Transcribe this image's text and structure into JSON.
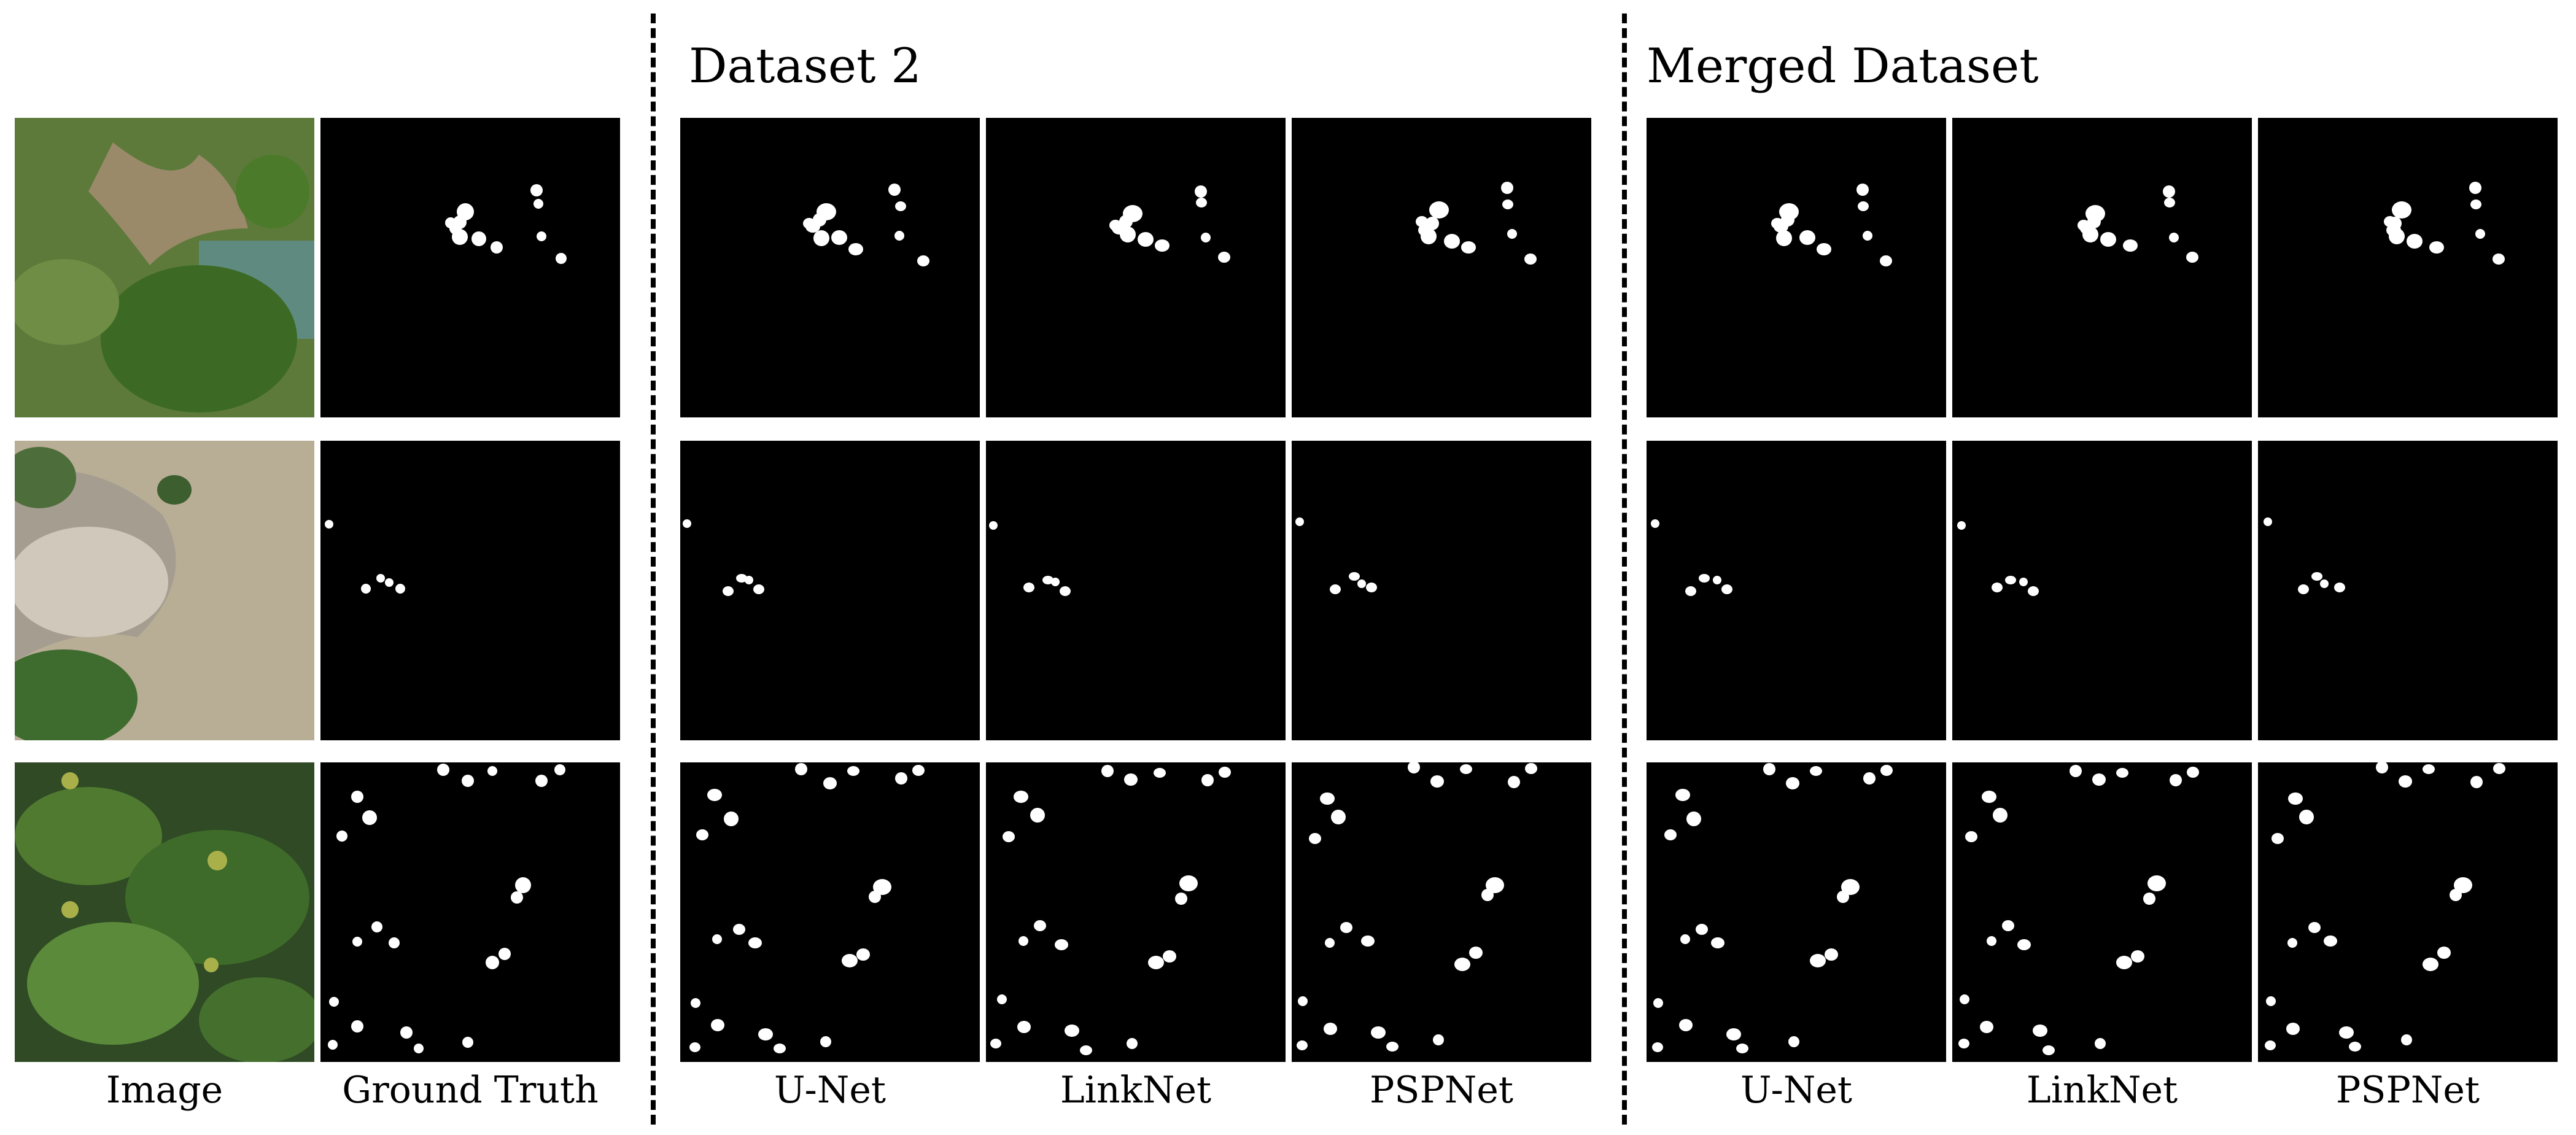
{
  "headings": {
    "dataset2": "Dataset 2",
    "merged": "Merged Dataset"
  },
  "column_labels": {
    "image": "Image",
    "ground_truth": "Ground Truth",
    "ds2_unet": "U-Net",
    "ds2_linknet": "LinkNet",
    "ds2_pspnet": "PSPNet",
    "merged_unet": "U-Net",
    "merged_linknet": "LinkNet",
    "merged_pspnet": "PSPNet"
  },
  "colors": {
    "mask_background": "#000000",
    "mask_foreground": "#ffffff",
    "background": "#ffffff"
  }
}
